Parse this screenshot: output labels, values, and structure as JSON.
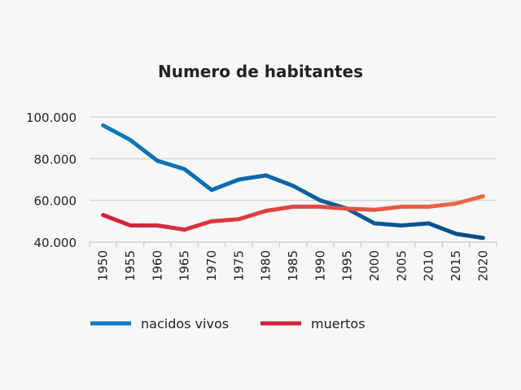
{
  "chart_data": {
    "type": "line",
    "title": "Numero de habitantes",
    "xlabel": "",
    "ylabel": "",
    "x": [
      "1950",
      "1955",
      "1960",
      "1965",
      "1970",
      "1975",
      "1980",
      "1985",
      "1990",
      "1995",
      "2000",
      "2005",
      "2010",
      "2015",
      "2020"
    ],
    "ylim": [
      40000,
      100000
    ],
    "yticks": [
      40000,
      60000,
      80000,
      100000
    ],
    "ytick_labels": [
      "40.000",
      "60.000",
      "80.000",
      "100.000"
    ],
    "grid": true,
    "legend_position": "bottom-left",
    "series": [
      {
        "name": "nacidos vivos",
        "color_start": "#0a7bc2",
        "color_end": "#0a4a86",
        "values": [
          96000,
          89000,
          79000,
          75000,
          65000,
          70000,
          72000,
          67000,
          60000,
          56000,
          49000,
          48000,
          49000,
          44000,
          42000
        ]
      },
      {
        "name": "muertos",
        "color_start": "#d0213a",
        "color_end": "#ef6a45",
        "values": [
          53000,
          48000,
          48000,
          46000,
          50000,
          51000,
          55000,
          57000,
          57000,
          56000,
          55500,
          57000,
          57000,
          58500,
          62000
        ]
      }
    ]
  }
}
